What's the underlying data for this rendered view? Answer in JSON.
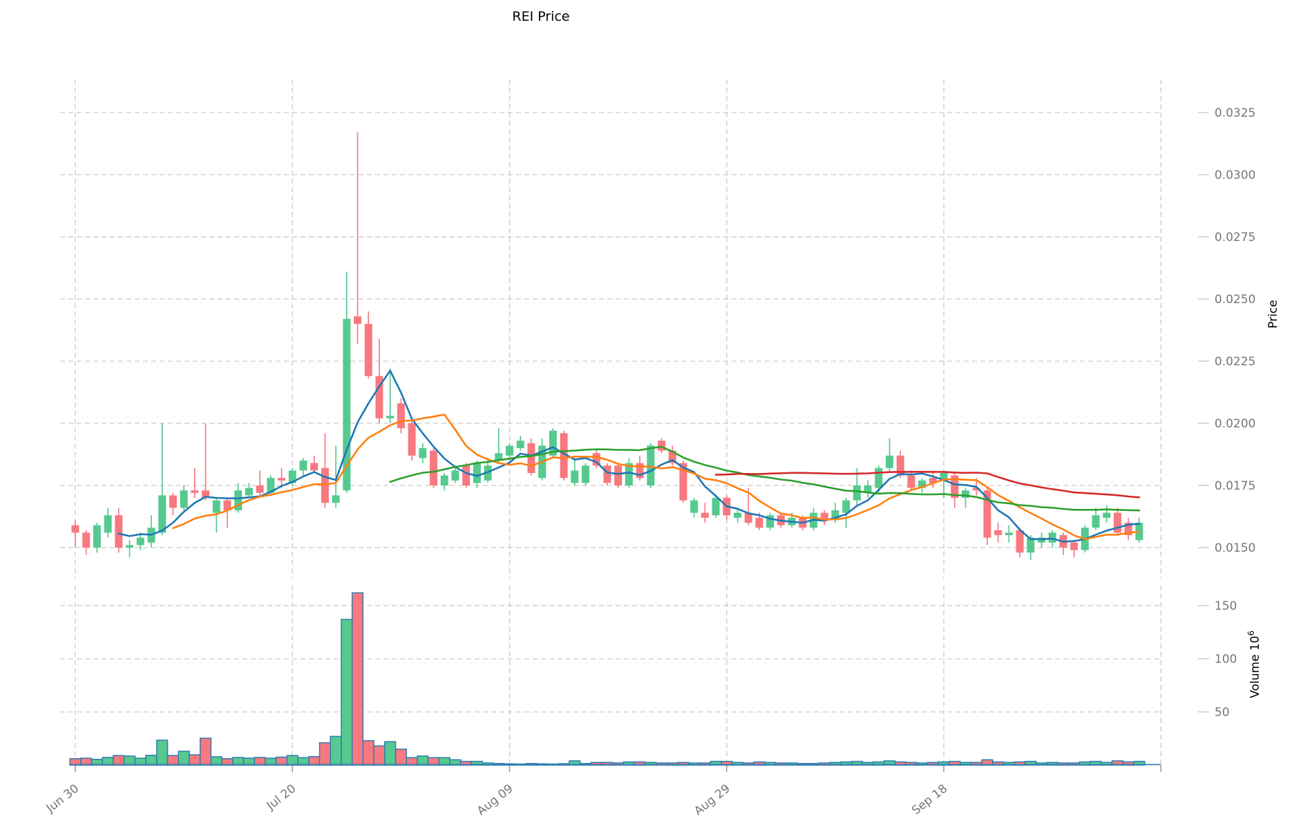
{
  "title": "REI Price",
  "axes": {
    "price_label": "Price",
    "volume_label": "Volume",
    "volume_scale_base": "10",
    "volume_scale_exp": "6",
    "price_ticks": [
      {
        "label": "0.0150",
        "value": 0.015
      },
      {
        "label": "0.0175",
        "value": 0.0175
      },
      {
        "label": "0.0200",
        "value": 0.02
      },
      {
        "label": "0.0225",
        "value": 0.0225
      },
      {
        "label": "0.0250",
        "value": 0.025
      },
      {
        "label": "0.0275",
        "value": 0.0275
      },
      {
        "label": "0.0300",
        "value": 0.03
      },
      {
        "label": "0.0325",
        "value": 0.0325
      }
    ],
    "volume_ticks": [
      {
        "label": "50",
        "value": 50
      },
      {
        "label": "100",
        "value": 100
      },
      {
        "label": "150",
        "value": 150
      }
    ],
    "x_ticks": [
      {
        "label": "Jun 30",
        "day": 0
      },
      {
        "label": "Jul 20",
        "day": 20
      },
      {
        "label": "Aug 09",
        "day": 40
      },
      {
        "label": "Aug 29",
        "day": 60
      },
      {
        "label": "Sep 18",
        "day": 80
      },
      {
        "label": "",
        "day": 100
      }
    ]
  },
  "colors": {
    "up": "#56c98f",
    "down": "#f7797f",
    "ma": [
      "#1f77b4",
      "#ff7f0e",
      "#2ca02c",
      "#d62728"
    ],
    "grid": "#c9c9c9",
    "tick_text": "#757575",
    "axis_text": "#000000",
    "volume_bar_edge": "#2e7db2"
  },
  "chart_data": {
    "type": "candlestick",
    "title": "REI Price",
    "ylabel_price": "Price",
    "ylabel_volume": "Volume 10^6",
    "price_axis_range": [
      0.015,
      0.0325
    ],
    "volume_axis_ticks_millions": [
      50,
      100,
      150
    ],
    "grid": "dashed",
    "moving_average_windows": [
      5,
      10,
      30,
      60
    ],
    "dates": [
      "Jun 30",
      "Jul 01",
      "Jul 02",
      "Jul 03",
      "Jul 04",
      "Jul 05",
      "Jul 06",
      "Jul 07",
      "Jul 08",
      "Jul 09",
      "Jul 10",
      "Jul 11",
      "Jul 12",
      "Jul 13",
      "Jul 14",
      "Jul 15",
      "Jul 16",
      "Jul 17",
      "Jul 18",
      "Jul 19",
      "Jul 20",
      "Jul 21",
      "Jul 22",
      "Jul 23",
      "Jul 24",
      "Jul 25",
      "Jul 26",
      "Jul 27",
      "Jul 28",
      "Jul 29",
      "Jul 30",
      "Jul 31",
      "Aug 01",
      "Aug 02",
      "Aug 03",
      "Aug 04",
      "Aug 05",
      "Aug 06",
      "Aug 07",
      "Aug 08",
      "Aug 09",
      "Aug 10",
      "Aug 11",
      "Aug 12",
      "Aug 13",
      "Aug 14",
      "Aug 15",
      "Aug 16",
      "Aug 17",
      "Aug 18",
      "Aug 19",
      "Aug 20",
      "Aug 21",
      "Aug 22",
      "Aug 23",
      "Aug 24",
      "Aug 25",
      "Aug 26",
      "Aug 27",
      "Aug 28",
      "Aug 29",
      "Aug 30",
      "Aug 31",
      "Sep 01",
      "Sep 02",
      "Sep 03",
      "Sep 04",
      "Sep 05",
      "Sep 06",
      "Sep 07",
      "Sep 08",
      "Sep 09",
      "Sep 10",
      "Sep 11",
      "Sep 12",
      "Sep 13",
      "Sep 14",
      "Sep 15",
      "Sep 16",
      "Sep 17",
      "Sep 18",
      "Sep 19",
      "Sep 20",
      "Sep 21",
      "Sep 22",
      "Sep 23",
      "Sep 24",
      "Sep 25",
      "Sep 26",
      "Sep 27",
      "Sep 28",
      "Sep 29",
      "Sep 30",
      "Oct 01",
      "Oct 02",
      "Oct 03",
      "Oct 04",
      "Oct 05",
      "Oct 06"
    ],
    "ohlc": [
      [
        0.0159,
        0.0161,
        0.015,
        0.0156
      ],
      [
        0.0156,
        0.0157,
        0.0147,
        0.015
      ],
      [
        0.015,
        0.016,
        0.0148,
        0.0159
      ],
      [
        0.0156,
        0.0166,
        0.0154,
        0.0163
      ],
      [
        0.0163,
        0.0166,
        0.0148,
        0.015
      ],
      [
        0.015,
        0.0153,
        0.0146,
        0.0151
      ],
      [
        0.0151,
        0.0156,
        0.0149,
        0.0154
      ],
      [
        0.0152,
        0.0163,
        0.015,
        0.0158
      ],
      [
        0.0156,
        0.02,
        0.0155,
        0.0171
      ],
      [
        0.0171,
        0.0172,
        0.0163,
        0.0166
      ],
      [
        0.0166,
        0.0175,
        0.0165,
        0.0173
      ],
      [
        0.0173,
        0.0182,
        0.017,
        0.0172
      ],
      [
        0.0173,
        0.02,
        0.0169,
        0.017
      ],
      [
        0.0164,
        0.017,
        0.0156,
        0.0169
      ],
      [
        0.0169,
        0.017,
        0.0158,
        0.0165
      ],
      [
        0.0165,
        0.0176,
        0.0164,
        0.0173
      ],
      [
        0.0171,
        0.0176,
        0.017,
        0.0174
      ],
      [
        0.0175,
        0.0181,
        0.0171,
        0.0172
      ],
      [
        0.0172,
        0.0179,
        0.0171,
        0.0178
      ],
      [
        0.0178,
        0.0182,
        0.0174,
        0.0177
      ],
      [
        0.0176,
        0.0182,
        0.0175,
        0.0181
      ],
      [
        0.0181,
        0.0186,
        0.0179,
        0.0185
      ],
      [
        0.0184,
        0.0187,
        0.018,
        0.0181
      ],
      [
        0.0182,
        0.0196,
        0.0166,
        0.0168
      ],
      [
        0.0168,
        0.0191,
        0.0166,
        0.0171
      ],
      [
        0.0173,
        0.0261,
        0.0172,
        0.0242
      ],
      [
        0.0243,
        0.0317,
        0.0232,
        0.024
      ],
      [
        0.024,
        0.0245,
        0.0218,
        0.0219
      ],
      [
        0.0219,
        0.0234,
        0.02,
        0.0202
      ],
      [
        0.0202,
        0.0222,
        0.02,
        0.0203
      ],
      [
        0.0208,
        0.021,
        0.0196,
        0.0198
      ],
      [
        0.02,
        0.0201,
        0.0185,
        0.0187
      ],
      [
        0.0186,
        0.0192,
        0.0184,
        0.019
      ],
      [
        0.0189,
        0.019,
        0.0174,
        0.0175
      ],
      [
        0.0175,
        0.018,
        0.0173,
        0.0179
      ],
      [
        0.0177,
        0.0183,
        0.0176,
        0.0181
      ],
      [
        0.0183,
        0.0184,
        0.0174,
        0.0175
      ],
      [
        0.0176,
        0.0185,
        0.0174,
        0.0184
      ],
      [
        0.0177,
        0.0186,
        0.0176,
        0.0183
      ],
      [
        0.0185,
        0.0198,
        0.0184,
        0.0188
      ],
      [
        0.0187,
        0.0192,
        0.0185,
        0.0191
      ],
      [
        0.019,
        0.0195,
        0.0189,
        0.0193
      ],
      [
        0.0192,
        0.0194,
        0.0179,
        0.018
      ],
      [
        0.0178,
        0.0194,
        0.0177,
        0.0191
      ],
      [
        0.0187,
        0.0198,
        0.0186,
        0.0197
      ],
      [
        0.0196,
        0.0197,
        0.0177,
        0.0178
      ],
      [
        0.0176,
        0.0186,
        0.0175,
        0.0181
      ],
      [
        0.0176,
        0.0184,
        0.0175,
        0.0183
      ],
      [
        0.0188,
        0.0189,
        0.0182,
        0.0183
      ],
      [
        0.0183,
        0.0184,
        0.0175,
        0.0176
      ],
      [
        0.0183,
        0.0184,
        0.0174,
        0.0175
      ],
      [
        0.0175,
        0.0186,
        0.0174,
        0.0184
      ],
      [
        0.0184,
        0.0187,
        0.0177,
        0.0178
      ],
      [
        0.0175,
        0.0192,
        0.0174,
        0.0191
      ],
      [
        0.0193,
        0.0194,
        0.0188,
        0.0189
      ],
      [
        0.0189,
        0.0191,
        0.0183,
        0.0184
      ],
      [
        0.0184,
        0.0185,
        0.0168,
        0.0169
      ],
      [
        0.0164,
        0.017,
        0.0162,
        0.0169
      ],
      [
        0.0164,
        0.0168,
        0.016,
        0.0162
      ],
      [
        0.0163,
        0.0171,
        0.0162,
        0.017
      ],
      [
        0.017,
        0.0171,
        0.0161,
        0.0163
      ],
      [
        0.0162,
        0.0166,
        0.016,
        0.0164
      ],
      [
        0.0164,
        0.0174,
        0.0159,
        0.016
      ],
      [
        0.0162,
        0.0164,
        0.0157,
        0.0158
      ],
      [
        0.0158,
        0.0164,
        0.0157,
        0.0163
      ],
      [
        0.0163,
        0.0164,
        0.0158,
        0.0159
      ],
      [
        0.0159,
        0.0164,
        0.0158,
        0.0162
      ],
      [
        0.0162,
        0.0163,
        0.0157,
        0.0158
      ],
      [
        0.0158,
        0.0166,
        0.0157,
        0.0164
      ],
      [
        0.0164,
        0.0165,
        0.0159,
        0.0161
      ],
      [
        0.0161,
        0.0168,
        0.016,
        0.0165
      ],
      [
        0.0164,
        0.017,
        0.0158,
        0.0169
      ],
      [
        0.0169,
        0.0182,
        0.0167,
        0.0175
      ],
      [
        0.0172,
        0.0177,
        0.017,
        0.0175
      ],
      [
        0.0174,
        0.0183,
        0.0172,
        0.0182
      ],
      [
        0.0182,
        0.0194,
        0.018,
        0.0187
      ],
      [
        0.0187,
        0.0189,
        0.0178,
        0.0179
      ],
      [
        0.0179,
        0.0181,
        0.0173,
        0.0174
      ],
      [
        0.0174,
        0.0178,
        0.0172,
        0.0177
      ],
      [
        0.0178,
        0.0181,
        0.0174,
        0.0176
      ],
      [
        0.0177,
        0.0181,
        0.017,
        0.018
      ],
      [
        0.0179,
        0.018,
        0.0166,
        0.017
      ],
      [
        0.017,
        0.0174,
        0.0166,
        0.0173
      ],
      [
        0.0174,
        0.0178,
        0.0171,
        0.0173
      ],
      [
        0.0173,
        0.0174,
        0.0151,
        0.0154
      ],
      [
        0.0157,
        0.016,
        0.0152,
        0.0155
      ],
      [
        0.0155,
        0.0159,
        0.0152,
        0.0156
      ],
      [
        0.0157,
        0.0158,
        0.0146,
        0.0148
      ],
      [
        0.0148,
        0.0155,
        0.0145,
        0.0154
      ],
      [
        0.0152,
        0.0156,
        0.015,
        0.0154
      ],
      [
        0.0152,
        0.0157,
        0.015,
        0.0156
      ],
      [
        0.0155,
        0.0156,
        0.0147,
        0.015
      ],
      [
        0.0152,
        0.0153,
        0.0146,
        0.0149
      ],
      [
        0.0149,
        0.0159,
        0.0148,
        0.0158
      ],
      [
        0.0158,
        0.0166,
        0.0157,
        0.0163
      ],
      [
        0.0162,
        0.0167,
        0.016,
        0.0164
      ],
      [
        0.0164,
        0.0166,
        0.0155,
        0.0156
      ],
      [
        0.016,
        0.0162,
        0.0153,
        0.0155
      ],
      [
        0.0153,
        0.0162,
        0.0152,
        0.016
      ]
    ],
    "volume_millions": [
      6.0,
      6.5,
      5.4,
      7.2,
      9.0,
      8.5,
      6.5,
      9.2,
      23.4,
      9.0,
      13.0,
      9.7,
      25.3,
      7.8,
      6.0,
      7.2,
      6.5,
      7.2,
      6.5,
      7.5,
      9.0,
      7.0,
      8.0,
      21.0,
      27.0,
      137.0,
      162.0,
      23.0,
      18.0,
      22.0,
      15.0,
      7.0,
      8.5,
      7.0,
      7.0,
      5.0,
      3.5,
      3.5,
      2.0,
      1.5,
      1.2,
      1.0,
      1.5,
      1.2,
      1.0,
      1.3,
      4.0,
      1.5,
      2.5,
      2.5,
      2.0,
      3.0,
      3.0,
      2.5,
      2.0,
      2.0,
      2.5,
      2.0,
      2.0,
      3.5,
      3.5,
      2.5,
      2.0,
      3.0,
      2.5,
      2.0,
      2.0,
      1.5,
      1.5,
      2.0,
      2.5,
      3.0,
      3.5,
      2.5,
      3.0,
      4.0,
      3.0,
      2.5,
      2.0,
      2.5,
      3.0,
      3.5,
      2.5,
      2.5,
      5.0,
      3.0,
      2.5,
      3.0,
      3.5,
      2.0,
      2.5,
      2.0,
      2.0,
      3.0,
      3.5,
      2.5,
      4.0,
      3.0,
      3.5
    ]
  }
}
